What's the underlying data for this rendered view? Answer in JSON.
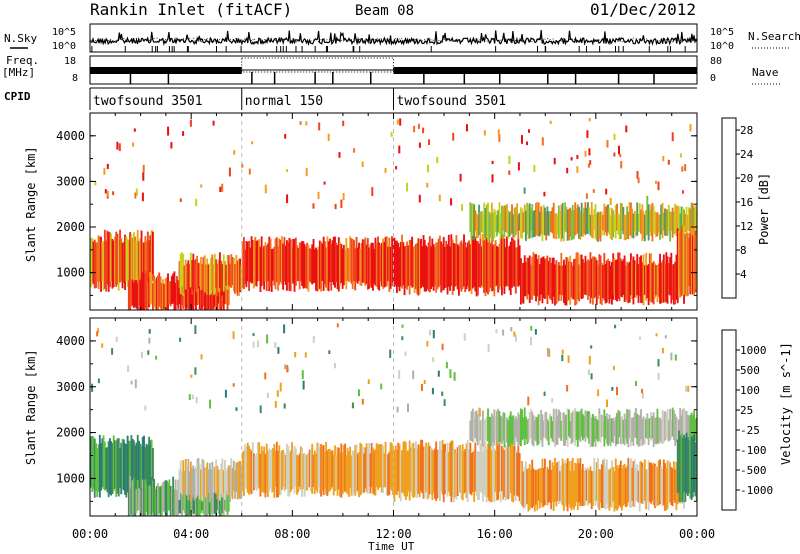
{
  "header": {
    "title": "Rankin Inlet (fitACF)",
    "beam": "Beam 08",
    "date": "01/Dec/2012"
  },
  "params": {
    "nsky_label": "N.Sky",
    "nsearch_label": "N.Search",
    "freq_label": "Freq.",
    "freq_unit": "[MHz]",
    "nave_label": "Nave",
    "cpid_label": "CPID",
    "nsky_ticks": [
      "10^5",
      "10^0"
    ],
    "nsearch_ticks": [
      "10^5",
      "10^0"
    ],
    "freq_ticks": [
      "18",
      "8"
    ],
    "nave_ticks": [
      "80",
      "0"
    ],
    "cpid_segments": [
      {
        "label": "twofsound 3501",
        "start": 0,
        "end": 6
      },
      {
        "label": "normal 150",
        "start": 6,
        "end": 12
      },
      {
        "label": "twofsound 3501",
        "start": 12,
        "end": 24
      }
    ]
  },
  "chart_data": [
    {
      "type": "heatmap",
      "panel": "power",
      "xlabel": "Time UT",
      "ylabel": "Slant Range [km]",
      "xlim": [
        0,
        24
      ],
      "ylim": [
        180,
        4500
      ],
      "yticks": [
        "1000",
        "2000",
        "3000",
        "4000"
      ],
      "xticks": [
        "00:00",
        "04:00",
        "08:00",
        "12:00",
        "16:00",
        "20:00",
        "00:00"
      ],
      "colorbar": {
        "label": "Power [dB]",
        "ticks": [
          "4",
          "8",
          "12",
          "16",
          "20",
          "24",
          "28"
        ],
        "range": [
          0,
          30
        ],
        "colors": [
          "#0020ff",
          "#1f4fb0",
          "#2e7a7a",
          "#4e9a5a",
          "#7ec040",
          "#c8d020",
          "#f0a020",
          "#f07020",
          "#f04020",
          "#e81010"
        ]
      },
      "bands": [
        {
          "t_start": 0.0,
          "t_end": 2.5,
          "r_low": 700,
          "r_high": 1800,
          "level": 24
        },
        {
          "t_start": 1.5,
          "t_end": 5.5,
          "r_low": 200,
          "r_high": 900,
          "level": 28
        },
        {
          "t_start": 3.5,
          "t_end": 6.0,
          "r_low": 600,
          "r_high": 1300,
          "level": 24
        },
        {
          "t_start": 6.0,
          "t_end": 12.0,
          "r_low": 700,
          "r_high": 1650,
          "level": 28
        },
        {
          "t_start": 12.0,
          "t_end": 17.0,
          "r_low": 600,
          "r_high": 1700,
          "level": 28
        },
        {
          "t_start": 17.0,
          "t_end": 23.5,
          "r_low": 400,
          "r_high": 1300,
          "level": 28
        },
        {
          "t_start": 15.0,
          "t_end": 24.0,
          "r_low": 1800,
          "r_high": 2400,
          "level": 18
        },
        {
          "t_start": 23.2,
          "t_end": 24.0,
          "r_low": 600,
          "r_high": 1900,
          "level": 24
        }
      ]
    },
    {
      "type": "heatmap",
      "panel": "velocity",
      "xlabel": "Time UT",
      "ylabel": "Slant Range [km]",
      "xlim": [
        0,
        24
      ],
      "ylim": [
        180,
        4500
      ],
      "yticks": [
        "1000",
        "2000",
        "3000",
        "4000"
      ],
      "xticks": [
        "00:00",
        "04:00",
        "08:00",
        "12:00",
        "16:00",
        "20:00",
        "00:00"
      ],
      "colorbar": {
        "label": "Velocity [m s^-1]",
        "ticks": [
          "1000",
          "500",
          "100",
          "25",
          "-25",
          "-100",
          "-500",
          "-1000"
        ],
        "colors": [
          "#2030c0",
          "#2a7a7a",
          "#3d8a5a",
          "#60c040",
          "#b0b0a8",
          "#d0d0c0",
          "#f0a020",
          "#f07020",
          "#f03010"
        ]
      },
      "bands": [
        {
          "t_start": 0.0,
          "t_end": 2.5,
          "r_low": 700,
          "r_high": 1800,
          "level": 100
        },
        {
          "t_start": 1.5,
          "t_end": 5.5,
          "r_low": 200,
          "r_high": 900,
          "level": 25
        },
        {
          "t_start": 3.5,
          "t_end": 6.0,
          "r_low": 600,
          "r_high": 1300,
          "level": -100
        },
        {
          "t_start": 6.0,
          "t_end": 12.0,
          "r_low": 700,
          "r_high": 1650,
          "level": -500
        },
        {
          "t_start": 12.0,
          "t_end": 17.0,
          "r_low": 600,
          "r_high": 1700,
          "level": -500
        },
        {
          "t_start": 17.0,
          "t_end": 23.5,
          "r_low": 400,
          "r_high": 1300,
          "level": -500
        },
        {
          "t_start": 15.0,
          "t_end": 24.0,
          "r_low": 1800,
          "r_high": 2400,
          "level": -25
        },
        {
          "t_start": 23.2,
          "t_end": 24.0,
          "r_low": 600,
          "r_high": 1900,
          "level": 100
        }
      ]
    }
  ]
}
